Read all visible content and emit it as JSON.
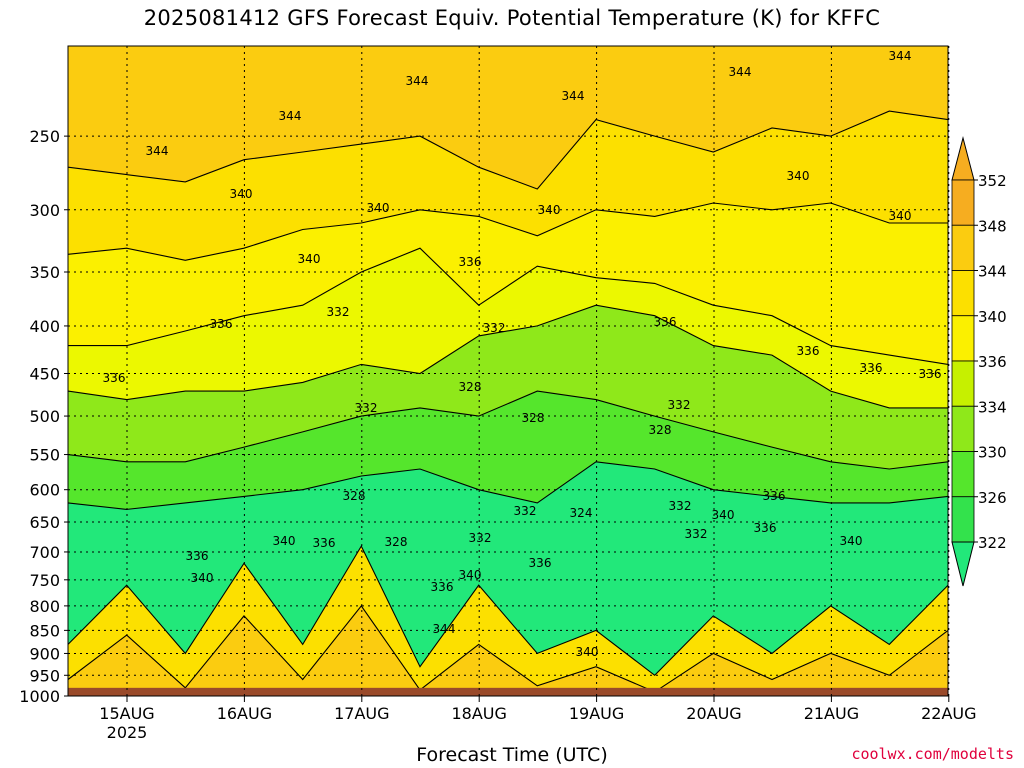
{
  "title": "2025081412 GFS Forecast Equiv. Potential Temperature (K) for KFFC",
  "xlabel": "Forecast Time (UTC)",
  "credit": "coolwx.com/modelts",
  "colors": {
    "ground": "#9a4a2a",
    "levels": [
      "#22e87a",
      "#33e24c",
      "#55e62c",
      "#8fe81a",
      "#c6f000",
      "#ecf800",
      "#fbf000",
      "#fce000",
      "#fbcc10",
      "#f6ad20"
    ]
  },
  "chart_data": {
    "type": "heatmap",
    "x_ticks": [
      "15AUG",
      "16AUG",
      "17AUG",
      "18AUG",
      "19AUG",
      "20AUG",
      "21AUG",
      "22AUG"
    ],
    "x_year_label": "2025",
    "y_ticks": [
      250,
      300,
      350,
      400,
      450,
      500,
      550,
      600,
      650,
      700,
      750,
      800,
      850,
      900,
      950,
      1000
    ],
    "y_scale": "log-pressure",
    "ylim": [
      1000,
      200
    ],
    "grid": true,
    "colorbar_ticks": [
      352,
      348,
      344,
      340,
      336,
      334,
      330,
      326,
      322
    ],
    "contour_labels": [
      "344",
      "344",
      "344",
      "344",
      "344",
      "344",
      "344",
      "340",
      "340",
      "340",
      "340",
      "340",
      "340",
      "340",
      "340",
      "340",
      "340",
      "340",
      "340",
      "336",
      "336",
      "336",
      "336",
      "336",
      "336",
      "336",
      "336",
      "336",
      "336",
      "336",
      "336",
      "336",
      "332",
      "332",
      "332",
      "332",
      "332",
      "332",
      "332",
      "332",
      "328",
      "328",
      "328",
      "328",
      "328",
      "324"
    ],
    "series": [
      {
        "level": 344,
        "values": [
          270,
          275,
          280,
          265,
          260,
          255,
          250,
          270,
          285,
          240,
          250,
          260,
          245,
          250,
          235,
          240
        ]
      },
      {
        "level": 340,
        "values": [
          335,
          330,
          340,
          330,
          315,
          310,
          300,
          305,
          320,
          300,
          305,
          295,
          300,
          295,
          310,
          310
        ]
      },
      {
        "level": 336,
        "values": [
          420,
          420,
          405,
          390,
          380,
          350,
          330,
          380,
          345,
          355,
          360,
          380,
          390,
          420,
          430,
          440
        ]
      },
      {
        "level": 332,
        "values": [
          470,
          480,
          470,
          470,
          460,
          440,
          450,
          410,
          400,
          380,
          390,
          420,
          430,
          470,
          490,
          490
        ]
      },
      {
        "level": 328,
        "values": [
          550,
          560,
          560,
          540,
          520,
          500,
          490,
          500,
          470,
          480,
          500,
          520,
          540,
          560,
          570,
          560
        ]
      },
      {
        "level": 324,
        "values": [
          620,
          630,
          620,
          610,
          600,
          580,
          570,
          600,
          620,
          560,
          570,
          600,
          610,
          620,
          620,
          610
        ]
      }
    ]
  }
}
